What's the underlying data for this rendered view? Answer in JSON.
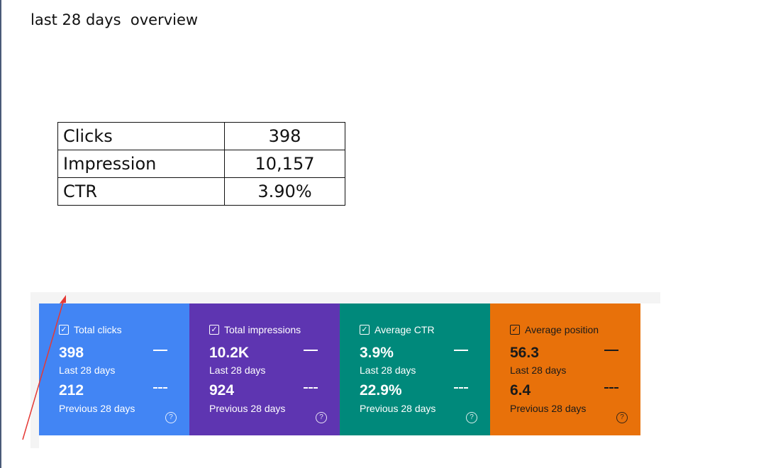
{
  "title": "last 28 days  overview",
  "table": {
    "rows": [
      {
        "label": "Clicks",
        "value": "398"
      },
      {
        "label": "Impression",
        "value": "10,157"
      },
      {
        "label": "CTR",
        "value": "3.90%"
      }
    ]
  },
  "metrics": [
    {
      "name": "Total clicks",
      "value": "398",
      "value_label": "Last 28 days",
      "previous": "212",
      "previous_label": "Previous 28 days",
      "color": "#4285f4"
    },
    {
      "name": "Total impressions",
      "value": "10.2K",
      "value_label": "Last 28 days",
      "previous": "924",
      "previous_label": "Previous 28 days",
      "color": "#5e35b1"
    },
    {
      "name": "Average CTR",
      "value": "3.9%",
      "value_label": "Last 28 days",
      "previous": "22.9%",
      "previous_label": "Previous 28 days",
      "color": "#00897b"
    },
    {
      "name": "Average position",
      "value": "56.3",
      "value_label": "Last 28 days",
      "previous": "6.4",
      "previous_label": "Previous 28 days",
      "color": "#e8710a"
    }
  ],
  "icons": {
    "checkbox": "check-icon",
    "help": "help-circle-icon",
    "arrow": "red-arrow-annotation"
  },
  "accent": {
    "arrow": "#e53935"
  }
}
